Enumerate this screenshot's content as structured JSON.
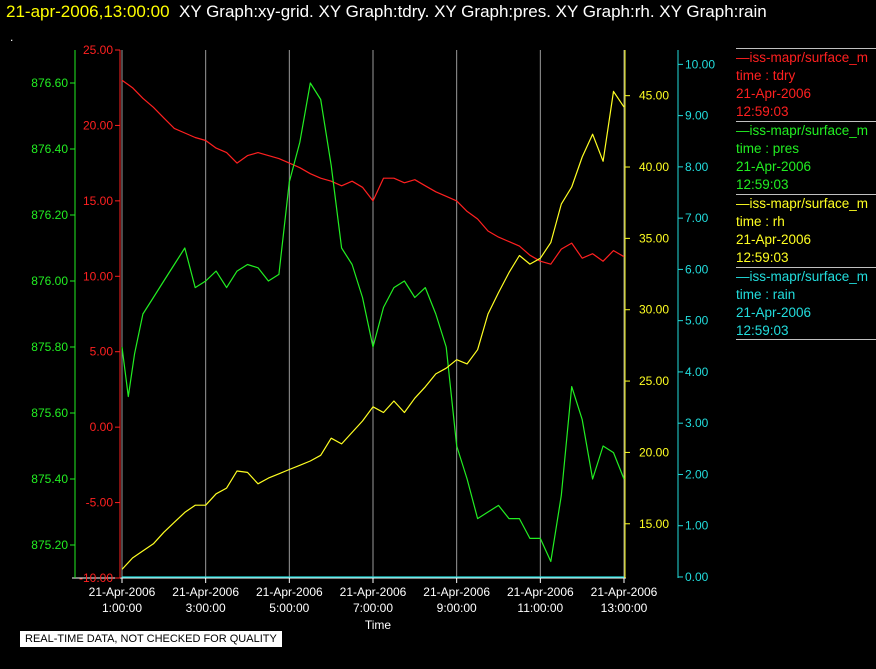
{
  "header": {
    "timestamp": "21-apr-2006,13:00:00",
    "graphs": "XY Graph:xy-grid.  XY Graph:tdry.  XY Graph:pres.  XY Graph:rh.  XY Graph:rain"
  },
  "marker": ".",
  "legend": [
    {
      "name": "—iss-mapr/surface_m",
      "var": "time : tdry",
      "date": "21-Apr-2006",
      "time": "12:59:03",
      "color": "#ff2020"
    },
    {
      "name": "—iss-mapr/surface_m",
      "var": "time : pres",
      "date": "21-Apr-2006",
      "time": "12:59:03",
      "color": "#22ee22"
    },
    {
      "name": "—iss-mapr/surface_m",
      "var": "time : rh",
      "date": "21-Apr-2006",
      "time": "12:59:03",
      "color": "#ffff22"
    },
    {
      "name": "—iss-mapr/surface_m",
      "var": "time : rain",
      "date": "21-Apr-2006",
      "time": "12:59:03",
      "color": "#22dddd"
    }
  ],
  "footer": {
    "qc_note": "REAL-TIME DATA, NOT CHECKED FOR QUALITY"
  },
  "chart_data": {
    "type": "line",
    "xlabel": "Time",
    "x_ticks": [
      {
        "date": "21-Apr-2006",
        "time": "1:00:00",
        "h": 1
      },
      {
        "date": "21-Apr-2006",
        "time": "3:00:00",
        "h": 3
      },
      {
        "date": "21-Apr-2006",
        "time": "5:00:00",
        "h": 5
      },
      {
        "date": "21-Apr-2006",
        "time": "7:00:00",
        "h": 7
      },
      {
        "date": "21-Apr-2006",
        "time": "9:00:00",
        "h": 9
      },
      {
        "date": "21-Apr-2006",
        "time": "11:00:00",
        "h": 11
      },
      {
        "date": "21-Apr-2006",
        "time": "13:00:00",
        "h": 13
      }
    ],
    "xlim": [
      1,
      13
    ],
    "grid": "vertical",
    "axes": {
      "pres": {
        "color": "#22ee22",
        "ylim": [
          875.1,
          876.7
        ],
        "ticks": [
          "875.20",
          "875.40",
          "875.60",
          "875.80",
          "876.00",
          "876.20",
          "876.40",
          "876.60"
        ]
      },
      "tdry": {
        "color": "#ff2020",
        "ylim": [
          -10,
          25
        ],
        "ticks": [
          "-10.00",
          "-5.00",
          "0.00",
          "5.00",
          "10.00",
          "15.00",
          "20.00",
          "25.00"
        ]
      },
      "rh": {
        "color": "#ffff22",
        "ylim": [
          11.2,
          48.2
        ],
        "ticks": [
          "15.00",
          "20.00",
          "25.00",
          "30.00",
          "35.00",
          "40.00",
          "45.00"
        ]
      },
      "rain": {
        "color": "#22dddd",
        "ylim": [
          -0.02,
          10.28
        ],
        "ticks": [
          "0.00",
          "1.00",
          "2.00",
          "3.00",
          "4.00",
          "5.00",
          "6.00",
          "7.00",
          "8.00",
          "9.00",
          "10.00"
        ]
      }
    },
    "series": [
      {
        "name": "tdry",
        "axis": "tdry",
        "color": "#ff2020",
        "x": [
          1,
          1.25,
          1.5,
          1.75,
          2,
          2.25,
          2.5,
          2.75,
          3,
          3.25,
          3.5,
          3.75,
          4,
          4.25,
          4.5,
          4.75,
          5,
          5.25,
          5.5,
          5.75,
          6,
          6.25,
          6.5,
          6.75,
          7,
          7.25,
          7.5,
          7.75,
          8,
          8.25,
          8.5,
          8.75,
          9,
          9.25,
          9.5,
          9.75,
          10,
          10.25,
          10.5,
          10.75,
          11,
          11.25,
          11.5,
          11.75,
          12,
          12.25,
          12.5,
          12.75,
          13
        ],
        "y": [
          23,
          22.5,
          21.8,
          21.2,
          20.5,
          19.8,
          19.5,
          19.2,
          19,
          18.5,
          18.2,
          17.5,
          18,
          18.2,
          18,
          17.8,
          17.5,
          17.2,
          16.8,
          16.5,
          16.3,
          16,
          16.3,
          15.9,
          15,
          16.5,
          16.5,
          16.2,
          16.4,
          16,
          15.6,
          15.3,
          15,
          14.3,
          13.8,
          13,
          12.6,
          12.3,
          12,
          11.4,
          11,
          10.8,
          11.8,
          12.2,
          11.2,
          11.5,
          11.0,
          11.7,
          11.3
        ]
      },
      {
        "name": "pres",
        "axis": "pres",
        "color": "#22ee22",
        "x": [
          1,
          1.15,
          1.3,
          1.5,
          1.75,
          2,
          2.25,
          2.5,
          2.75,
          3,
          3.25,
          3.5,
          3.75,
          4,
          4.25,
          4.5,
          4.75,
          5,
          5.25,
          5.5,
          5.75,
          6,
          6.25,
          6.5,
          6.75,
          7,
          7.25,
          7.5,
          7.75,
          8,
          8.25,
          8.5,
          8.75,
          9,
          9.25,
          9.5,
          9.75,
          10,
          10.25,
          10.5,
          10.75,
          11,
          11.25,
          11.5,
          11.75,
          12,
          12.25,
          12.5,
          12.75,
          13
        ],
        "y": [
          875.8,
          875.65,
          875.78,
          875.9,
          875.95,
          876.0,
          876.05,
          876.1,
          875.98,
          876.0,
          876.03,
          875.98,
          876.03,
          876.05,
          876.04,
          876.0,
          876.02,
          876.3,
          876.42,
          876.6,
          876.55,
          876.35,
          876.1,
          876.05,
          875.95,
          875.8,
          875.92,
          875.98,
          876.0,
          875.95,
          875.98,
          875.9,
          875.8,
          875.5,
          875.4,
          875.28,
          875.3,
          875.32,
          875.28,
          875.28,
          875.22,
          875.22,
          875.15,
          875.35,
          875.68,
          875.58,
          875.4,
          875.5,
          875.48,
          875.4
        ]
      },
      {
        "name": "rh",
        "axis": "rh",
        "color": "#ffff22",
        "x": [
          1,
          1.25,
          1.5,
          1.75,
          2,
          2.25,
          2.5,
          2.75,
          3,
          3.25,
          3.5,
          3.75,
          4,
          4.25,
          4.5,
          4.75,
          5,
          5.25,
          5.5,
          5.75,
          6,
          6.25,
          6.5,
          6.75,
          7,
          7.25,
          7.5,
          7.75,
          8,
          8.25,
          8.5,
          8.75,
          9,
          9.25,
          9.5,
          9.75,
          10,
          10.25,
          10.5,
          10.75,
          11,
          11.25,
          11.5,
          11.75,
          12,
          12.25,
          12.5,
          12.75,
          13
        ],
        "y": [
          11.8,
          12.6,
          13.1,
          13.6,
          14.4,
          15.1,
          15.8,
          16.3,
          16.3,
          17.1,
          17.5,
          18.7,
          18.6,
          17.8,
          18.2,
          18.5,
          18.8,
          19.1,
          19.4,
          19.8,
          21,
          20.6,
          21.4,
          22.2,
          23.2,
          22.8,
          23.6,
          22.8,
          23.8,
          24.6,
          25.5,
          25.9,
          26.5,
          26.2,
          27.2,
          29.7,
          31.2,
          32.6,
          33.8,
          33.2,
          33.6,
          34.7,
          37.4,
          38.6,
          40.7,
          42.3,
          40.4,
          45.3,
          44.2
        ]
      },
      {
        "name": "rain",
        "axis": "rain",
        "color": "#22dddd",
        "x": [
          1,
          13
        ],
        "y": [
          0,
          0
        ]
      }
    ]
  }
}
